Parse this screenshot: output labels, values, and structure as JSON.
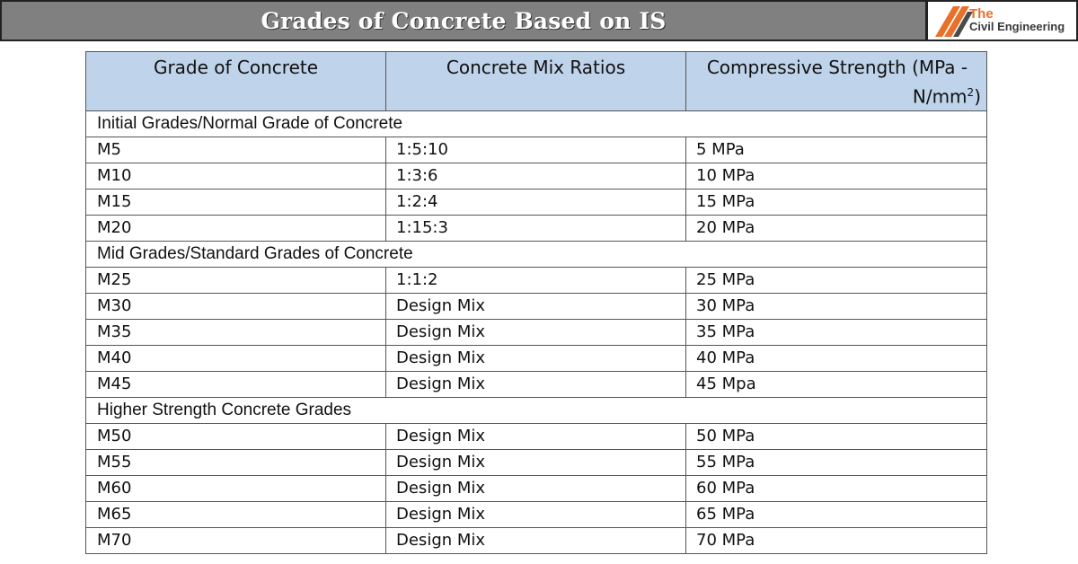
{
  "banner": {
    "title": "Grades of Concrete Based on IS"
  },
  "logo": {
    "line1": "The",
    "line2": "Civil Engineering",
    "colors": {
      "accent": "#e8702a",
      "text": "#3a3a3a"
    },
    "icon": "diagonal-stripes-icon"
  },
  "table": {
    "headers": {
      "grade": "Grade of Concrete",
      "mix": "Concrete Mix Ratios",
      "strength_line1": "Compressive Strength (MPa -",
      "strength_line2": "N/mm",
      "strength_sup": "2",
      "strength_close": ")"
    },
    "sections": [
      {
        "title": "Initial Grades/Normal Grade of Concrete",
        "rows": [
          {
            "grade": "M5",
            "mix": "1:5:10",
            "strength": "5 MPa"
          },
          {
            "grade": "M10",
            "mix": "1:3:6",
            "strength": "10 MPa"
          },
          {
            "grade": "M15",
            "mix": "1:2:4",
            "strength": "15 MPa"
          },
          {
            "grade": "M20",
            "mix": "1:15:3",
            "strength": "20 MPa"
          }
        ]
      },
      {
        "title": "Mid Grades/Standard Grades of Concrete",
        "rows": [
          {
            "grade": "M25",
            "mix": "1:1:2",
            "strength": "25 MPa"
          },
          {
            "grade": "M30",
            "mix": "Design Mix",
            "strength": "30 MPa"
          },
          {
            "grade": "M35",
            "mix": "Design Mix",
            "strength": "35 MPa"
          },
          {
            "grade": "M40",
            "mix": "Design Mix",
            "strength": "40 MPa"
          },
          {
            "grade": "M45",
            "mix": "Design Mix",
            "strength": "45 Mpa"
          }
        ]
      },
      {
        "title": "Higher Strength Concrete Grades",
        "rows": [
          {
            "grade": "M50",
            "mix": "Design Mix",
            "strength": "50 MPa"
          },
          {
            "grade": "M55",
            "mix": "Design Mix",
            "strength": "55 MPa"
          },
          {
            "grade": "M60",
            "mix": "Design Mix",
            "strength": "60 MPa"
          },
          {
            "grade": "M65",
            "mix": "Design Mix",
            "strength": "65 MPa"
          },
          {
            "grade": "M70",
            "mix": "Design Mix",
            "strength": "70 MPa"
          }
        ]
      }
    ]
  },
  "colors": {
    "banner_bg": "#808080",
    "header_bg": "#bfd3ea",
    "border": "#555555"
  }
}
